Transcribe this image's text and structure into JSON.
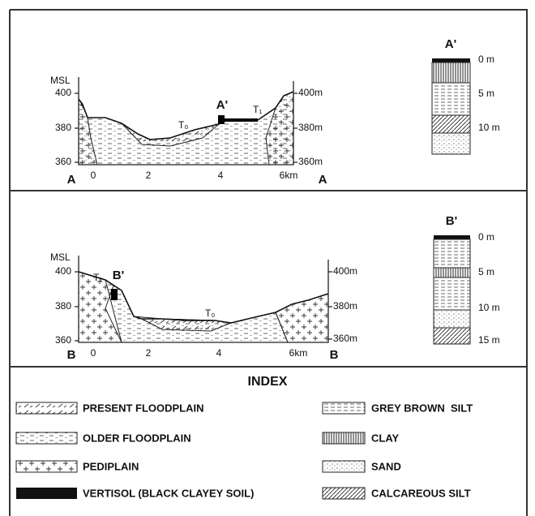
{
  "sections": [
    {
      "axis_left_label": "MSL",
      "left_ticks": [
        "400",
        "380",
        "360"
      ],
      "right_ticks": [
        "400m",
        "380m",
        "360m"
      ],
      "x_ticks": [
        "0",
        "2",
        "4",
        "6km"
      ],
      "end_labels": [
        "A",
        "A"
      ],
      "site_label": "A'",
      "terraces": [
        "T₀",
        "T₁"
      ],
      "column": {
        "label": "A'",
        "depths": [
          "0 m",
          "5 m",
          "10 m"
        ]
      }
    },
    {
      "axis_left_label": "MSL",
      "left_ticks": [
        "400",
        "380",
        "360"
      ],
      "right_ticks": [
        "400m",
        "380m",
        "360m"
      ],
      "x_ticks": [
        "0",
        "2",
        "4",
        "6km"
      ],
      "end_labels": [
        "B",
        "B"
      ],
      "site_label": "B'",
      "terraces": [
        "T₀",
        "T₁"
      ],
      "column": {
        "label": "B'",
        "depths": [
          "0 m",
          "5 m",
          "10 m",
          "15 m"
        ]
      }
    }
  ],
  "index": {
    "title": "INDEX",
    "items": [
      "PRESENT FLOODPLAIN",
      "OLDER FLOODPLAIN",
      "PEDIPLAIN",
      "VERTISOL (BLACK CLAYEY SOIL)",
      "GREY BROWN  SILT",
      "CLAY",
      "SAND",
      "CALCAREOUS SILT"
    ]
  }
}
